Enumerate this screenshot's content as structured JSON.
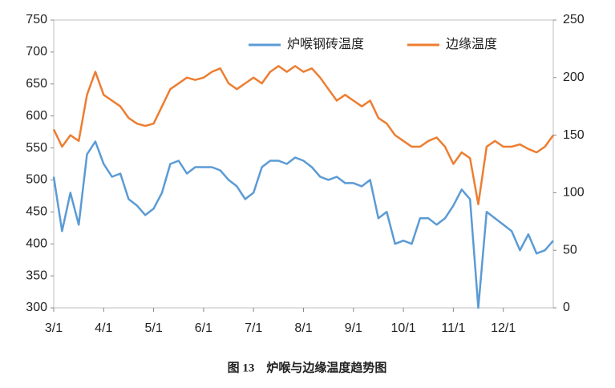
{
  "chart_data": {
    "type": "line",
    "caption": "图 13　炉喉与边缘温度趋势图",
    "categories": [
      "3/1",
      null,
      null,
      null,
      null,
      null,
      "4/1",
      null,
      null,
      null,
      null,
      null,
      "5/1",
      null,
      null,
      null,
      null,
      null,
      "6/1",
      null,
      null,
      null,
      null,
      null,
      "7/1",
      null,
      null,
      null,
      null,
      null,
      "8/1",
      null,
      null,
      null,
      null,
      null,
      "9/1",
      null,
      null,
      null,
      null,
      null,
      "10/1",
      null,
      null,
      null,
      null,
      null,
      "11/1",
      null,
      null,
      null,
      null,
      null,
      "12/1",
      null,
      null,
      null,
      null,
      null,
      null
    ],
    "series": [
      {
        "name": "炉喉钢砖温度",
        "color": "#5b9bd5",
        "axis": "y",
        "values": [
          505,
          420,
          480,
          430,
          540,
          560,
          525,
          505,
          510,
          470,
          460,
          445,
          455,
          480,
          525,
          530,
          510,
          520,
          520,
          520,
          515,
          500,
          490,
          470,
          480,
          520,
          530,
          530,
          525,
          535,
          530,
          520,
          505,
          500,
          505,
          495,
          495,
          490,
          500,
          440,
          450,
          400,
          405,
          400,
          440,
          440,
          430,
          440,
          460,
          485,
          470,
          300,
          450,
          440,
          430,
          420,
          390,
          415,
          385,
          390,
          405
        ]
      },
      {
        "name": "边缘温度",
        "color": "#ed7d31",
        "axis": "y2",
        "values": [
          155,
          140,
          150,
          145,
          185,
          205,
          185,
          180,
          175,
          165,
          160,
          158,
          160,
          175,
          190,
          195,
          200,
          198,
          200,
          205,
          208,
          195,
          190,
          195,
          200,
          195,
          205,
          210,
          205,
          210,
          205,
          208,
          200,
          190,
          180,
          185,
          180,
          175,
          180,
          165,
          160,
          150,
          145,
          140,
          140,
          145,
          148,
          140,
          125,
          135,
          130,
          90,
          140,
          145,
          140,
          140,
          142,
          138,
          135,
          140,
          150
        ]
      }
    ],
    "ylim": [
      300,
      750
    ],
    "yticks": [
      300,
      350,
      400,
      450,
      500,
      550,
      600,
      650,
      700,
      750
    ],
    "y2lim": [
      0,
      250
    ],
    "y2ticks": [
      0,
      50,
      100,
      150,
      200,
      250
    ],
    "legend": "top-right"
  }
}
